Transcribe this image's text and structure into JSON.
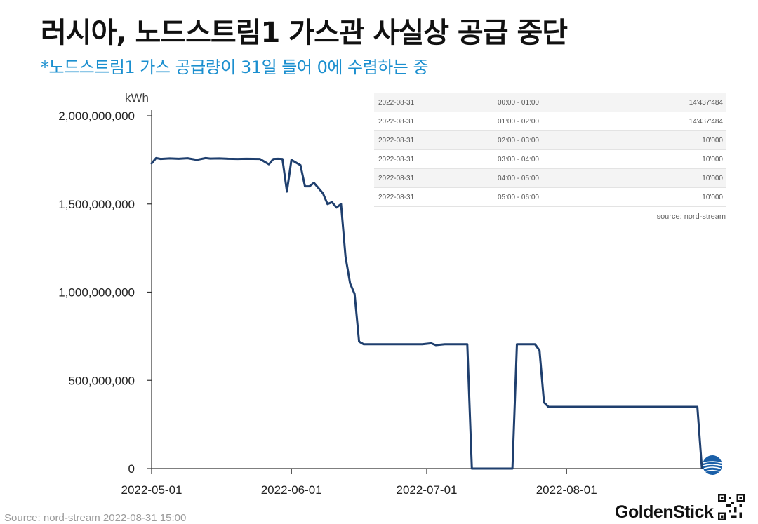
{
  "header": {
    "title": "러시아, 노드스트림1 가스관 사실상 공급 중단",
    "subtitle": "*노드스트림1 가스 공급량이 31일 들어 0에 수렴하는 중"
  },
  "chart_data": {
    "type": "line",
    "title": "러시아, 노드스트림1 가스관 사실상 공급 중단",
    "subtitle": "*노드스트림1 가스 공급량이 31일 들어 0에 수렴하는 중",
    "ylabel": "kWh",
    "xlabel": "",
    "ylim": [
      0,
      2000000000
    ],
    "yticks": [
      0,
      500000000,
      1000000000,
      1500000000,
      2000000000
    ],
    "ytick_labels": [
      "0",
      "500,000,000",
      "1,000,000,000",
      "1,500,000,000",
      "2,000,000,000"
    ],
    "xlim": [
      "2022-05-01",
      "2022-08-31"
    ],
    "xticks": [
      "2022-05-01",
      "2022-06-01",
      "2022-07-01",
      "2022-08-01"
    ],
    "grid": false,
    "color": "#1f3f6e",
    "series": [
      {
        "x": [
          "2022-05-01",
          "2022-05-02",
          "2022-05-03",
          "2022-05-05",
          "2022-05-07",
          "2022-05-09",
          "2022-05-11",
          "2022-05-13",
          "2022-05-14",
          "2022-05-16",
          "2022-05-18",
          "2022-05-20",
          "2022-05-22",
          "2022-05-25",
          "2022-05-27",
          "2022-05-28",
          "2022-05-29",
          "2022-05-30",
          "2022-05-31",
          "2022-06-01",
          "2022-06-03",
          "2022-06-04",
          "2022-06-05",
          "2022-06-06",
          "2022-06-07",
          "2022-06-08",
          "2022-06-09",
          "2022-06-10",
          "2022-06-11",
          "2022-06-12",
          "2022-06-13",
          "2022-06-14",
          "2022-06-15",
          "2022-06-16",
          "2022-06-17",
          "2022-06-18",
          "2022-06-20",
          "2022-06-25",
          "2022-06-30",
          "2022-07-02",
          "2022-07-03",
          "2022-07-05",
          "2022-07-10",
          "2022-07-11",
          "2022-07-12",
          "2022-07-20",
          "2022-07-21",
          "2022-07-25",
          "2022-07-26",
          "2022-07-27",
          "2022-07-28",
          "2022-08-05",
          "2022-08-10",
          "2022-08-20",
          "2022-08-30",
          "2022-08-31"
        ],
        "y": [
          1730000000,
          1760000000,
          1755000000,
          1758000000,
          1756000000,
          1759000000,
          1750000000,
          1760000000,
          1757000000,
          1758000000,
          1756000000,
          1755000000,
          1756000000,
          1755000000,
          1725000000,
          1755000000,
          1756000000,
          1755000000,
          1570000000,
          1750000000,
          1720000000,
          1600000000,
          1600000000,
          1620000000,
          1590000000,
          1560000000,
          1500000000,
          1510000000,
          1480000000,
          1500000000,
          1200000000,
          1050000000,
          990000000,
          720000000,
          705000000,
          705000000,
          705000000,
          705000000,
          705000000,
          710000000,
          700000000,
          705000000,
          705000000,
          0,
          0,
          0,
          705000000,
          705000000,
          670000000,
          375000000,
          350000000,
          350000000,
          350000000,
          350000000,
          350000000,
          5000000
        ]
      }
    ],
    "inset_table": {
      "rows": [
        {
          "date": "2022-08-31",
          "time": "00:00 - 01:00",
          "value": "14'437'484"
        },
        {
          "date": "2022-08-31",
          "time": "01:00 - 02:00",
          "value": "14'437'484"
        },
        {
          "date": "2022-08-31",
          "time": "02:00 - 03:00",
          "value": "10'000"
        },
        {
          "date": "2022-08-31",
          "time": "03:00 - 04:00",
          "value": "10'000"
        },
        {
          "date": "2022-08-31",
          "time": "04:00 - 05:00",
          "value": "10'000"
        },
        {
          "date": "2022-08-31",
          "time": "05:00 - 06:00",
          "value": "10'000"
        }
      ],
      "source": "source: nord-stream"
    }
  },
  "footer": {
    "source": "Source: nord-stream 2022-08-31 15:00",
    "brand": "GoldenStick"
  }
}
